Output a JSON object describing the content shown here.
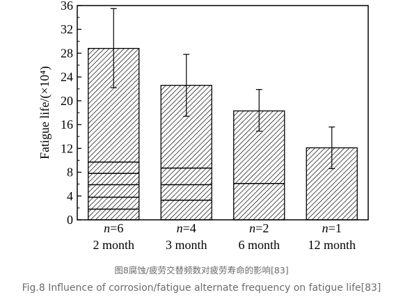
{
  "chart_data": {
    "type": "bar",
    "categories": [
      "2 month",
      "3 month",
      "6 month",
      "12 month"
    ],
    "n_labels": [
      "n=6",
      "n=4",
      "n=2",
      "n=1"
    ],
    "values": [
      28.8,
      22.6,
      18.3,
      12.1
    ],
    "error_upper": [
      35.5,
      27.8,
      21.9,
      15.6
    ],
    "error_lower": [
      22.2,
      17.4,
      14.9,
      8.6
    ],
    "segment_lines": [
      [
        1.8,
        3.8,
        5.9,
        7.8,
        9.7
      ],
      [
        3.3,
        5.9,
        8.7
      ],
      [
        6.1
      ],
      []
    ],
    "ylabel": "Fatigue life/(×10⁴)",
    "ylim": [
      0,
      36
    ],
    "yticks": [
      "0",
      "4",
      "8",
      "12",
      "16",
      "20",
      "24",
      "28",
      "32",
      "36"
    ],
    "grid": false,
    "legend": "none",
    "colors": {
      "bar_hatch": "#000000",
      "bar_fill": "#ffffff"
    }
  },
  "captions": {
    "zh": "图8腐蚀/疲劳交替频数对疲劳寿命的影响[83]",
    "en": "Fig.8 Influence of corrosion/fatigue alternate frequency on fatigue life[83]"
  }
}
